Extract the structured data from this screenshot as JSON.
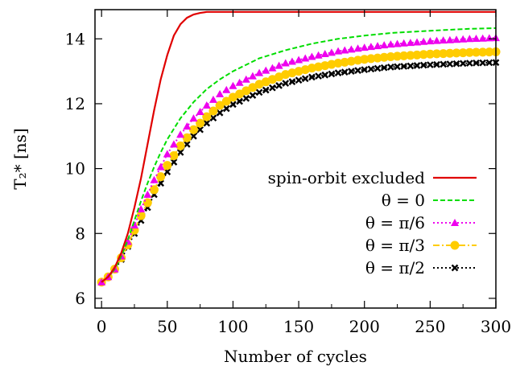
{
  "chart_data": {
    "type": "line",
    "title": "",
    "xlabel": "Number of cycles",
    "ylabel": "T₂* [ns]",
    "xlim": [
      -5,
      300
    ],
    "ylim": [
      5.7,
      14.9
    ],
    "xticks": [
      "0",
      "50",
      "100",
      "150",
      "200",
      "250",
      "300"
    ],
    "yticks": [
      "6",
      "8",
      "10",
      "12",
      "14"
    ],
    "grid": false,
    "legend_position": "lower-right",
    "series": [
      {
        "name": "spin-orbit excluded",
        "color": "#e00000",
        "style": "solid",
        "marker": "none",
        "points": [
          [
            0,
            6.5
          ],
          [
            5,
            6.66
          ],
          [
            10,
            6.95
          ],
          [
            15,
            7.4
          ],
          [
            20,
            8.0
          ],
          [
            25,
            8.8
          ],
          [
            30,
            9.7
          ],
          [
            35,
            10.75
          ],
          [
            40,
            11.8
          ],
          [
            45,
            12.75
          ],
          [
            50,
            13.5
          ],
          [
            55,
            14.1
          ],
          [
            60,
            14.45
          ],
          [
            65,
            14.65
          ],
          [
            70,
            14.75
          ],
          [
            75,
            14.8
          ],
          [
            80,
            14.83
          ],
          [
            90,
            14.83
          ],
          [
            100,
            14.83
          ],
          [
            150,
            14.83
          ],
          [
            200,
            14.83
          ],
          [
            250,
            14.83
          ],
          [
            300,
            14.83
          ]
        ]
      },
      {
        "name": "θ = 0",
        "color": "#00dd00",
        "style": "dashed",
        "marker": "none",
        "points": [
          [
            0,
            6.5
          ],
          [
            5,
            6.66
          ],
          [
            10,
            6.9
          ],
          [
            15,
            7.3
          ],
          [
            20,
            7.8
          ],
          [
            25,
            8.4
          ],
          [
            30,
            9.0
          ],
          [
            35,
            9.55
          ],
          [
            40,
            10.05
          ],
          [
            45,
            10.5
          ],
          [
            50,
            10.9
          ],
          [
            60,
            11.55
          ],
          [
            70,
            12.05
          ],
          [
            80,
            12.45
          ],
          [
            90,
            12.75
          ],
          [
            100,
            13.0
          ],
          [
            120,
            13.4
          ],
          [
            140,
            13.65
          ],
          [
            160,
            13.85
          ],
          [
            180,
            14.0
          ],
          [
            200,
            14.1
          ],
          [
            220,
            14.18
          ],
          [
            250,
            14.25
          ],
          [
            280,
            14.31
          ],
          [
            300,
            14.33
          ]
        ]
      },
      {
        "name": "θ = π/6",
        "color": "#ee00ee",
        "style": "dotted",
        "marker": "triangle",
        "points": [
          [
            0,
            6.5
          ],
          [
            5,
            6.66
          ],
          [
            10,
            6.9
          ],
          [
            15,
            7.3
          ],
          [
            20,
            7.75
          ],
          [
            25,
            8.25
          ],
          [
            30,
            8.75
          ],
          [
            35,
            9.2
          ],
          [
            40,
            9.65
          ],
          [
            45,
            10.05
          ],
          [
            50,
            10.45
          ],
          [
            60,
            11.05
          ],
          [
            70,
            11.55
          ],
          [
            80,
            11.95
          ],
          [
            90,
            12.3
          ],
          [
            100,
            12.55
          ],
          [
            120,
            12.95
          ],
          [
            140,
            13.25
          ],
          [
            160,
            13.45
          ],
          [
            180,
            13.62
          ],
          [
            200,
            13.73
          ],
          [
            220,
            13.83
          ],
          [
            250,
            13.93
          ],
          [
            280,
            14.0
          ],
          [
            300,
            14.03
          ]
        ]
      },
      {
        "name": "θ = π/3",
        "color": "#ffcc00",
        "style": "dashdot",
        "marker": "circle",
        "points": [
          [
            0,
            6.5
          ],
          [
            5,
            6.66
          ],
          [
            10,
            6.9
          ],
          [
            15,
            7.25
          ],
          [
            20,
            7.65
          ],
          [
            25,
            8.1
          ],
          [
            30,
            8.55
          ],
          [
            35,
            8.95
          ],
          [
            40,
            9.35
          ],
          [
            45,
            9.75
          ],
          [
            50,
            10.1
          ],
          [
            60,
            10.7
          ],
          [
            70,
            11.2
          ],
          [
            80,
            11.6
          ],
          [
            90,
            11.95
          ],
          [
            100,
            12.2
          ],
          [
            120,
            12.6
          ],
          [
            140,
            12.9
          ],
          [
            160,
            13.1
          ],
          [
            180,
            13.25
          ],
          [
            200,
            13.37
          ],
          [
            220,
            13.45
          ],
          [
            250,
            13.53
          ],
          [
            280,
            13.58
          ],
          [
            300,
            13.6
          ]
        ]
      },
      {
        "name": "θ = π/2",
        "color": "#000000",
        "style": "dotted",
        "marker": "cross",
        "points": [
          [
            0,
            6.5
          ],
          [
            5,
            6.66
          ],
          [
            10,
            6.88
          ],
          [
            15,
            7.2
          ],
          [
            20,
            7.6
          ],
          [
            25,
            8.0
          ],
          [
            30,
            8.4
          ],
          [
            35,
            8.8
          ],
          [
            40,
            9.2
          ],
          [
            45,
            9.55
          ],
          [
            50,
            9.9
          ],
          [
            60,
            10.5
          ],
          [
            70,
            11.0
          ],
          [
            80,
            11.4
          ],
          [
            90,
            11.72
          ],
          [
            100,
            11.98
          ],
          [
            120,
            12.35
          ],
          [
            140,
            12.63
          ],
          [
            160,
            12.82
          ],
          [
            180,
            12.95
          ],
          [
            200,
            13.05
          ],
          [
            220,
            13.13
          ],
          [
            250,
            13.2
          ],
          [
            280,
            13.25
          ],
          [
            300,
            13.27
          ]
        ]
      }
    ]
  }
}
